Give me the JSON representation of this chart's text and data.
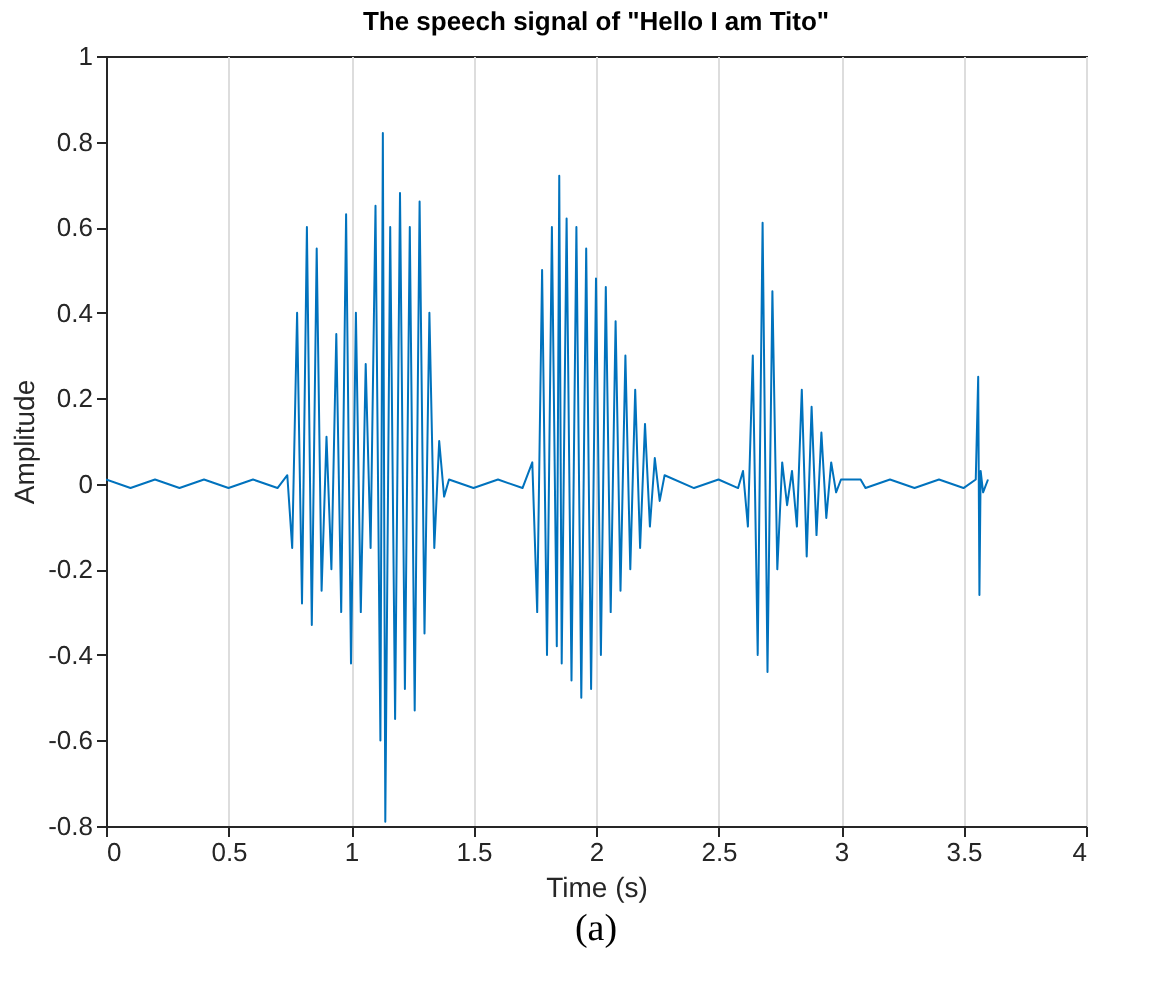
{
  "chart_data": {
    "type": "line",
    "title": "The speech signal of \"Hello I am Tito\"",
    "xlabel": "Time (s)",
    "ylabel": "Amplitude",
    "annotations": [
      "(a)"
    ],
    "xlim": [
      0,
      4
    ],
    "xticks": [
      0,
      0.5,
      1,
      1.5,
      2,
      2.5,
      3,
      3.5,
      4
    ],
    "ylim": [
      -0.8,
      1
    ],
    "yticks": [
      -0.8,
      -0.6,
      -0.4,
      -0.2,
      0,
      0.2,
      0.4,
      0.6,
      0.8,
      1
    ],
    "grid": "x",
    "series": [
      {
        "color": "#0072bd",
        "x": [
          0,
          0.1,
          0.2,
          0.3,
          0.4,
          0.5,
          0.6,
          0.7,
          0.74,
          0.76,
          0.78,
          0.8,
          0.82,
          0.84,
          0.86,
          0.88,
          0.9,
          0.92,
          0.94,
          0.96,
          0.98,
          1.0,
          1.02,
          1.04,
          1.06,
          1.08,
          1.1,
          1.12,
          1.13,
          1.14,
          1.16,
          1.18,
          1.2,
          1.22,
          1.24,
          1.26,
          1.28,
          1.3,
          1.32,
          1.34,
          1.36,
          1.38,
          1.4,
          1.5,
          1.6,
          1.7,
          1.74,
          1.76,
          1.78,
          1.8,
          1.82,
          1.84,
          1.85,
          1.86,
          1.88,
          1.9,
          1.92,
          1.94,
          1.96,
          1.98,
          2.0,
          2.02,
          2.04,
          2.06,
          2.08,
          2.1,
          2.12,
          2.14,
          2.16,
          2.18,
          2.2,
          2.22,
          2.24,
          2.26,
          2.28,
          2.4,
          2.5,
          2.58,
          2.6,
          2.62,
          2.64,
          2.66,
          2.68,
          2.7,
          2.72,
          2.74,
          2.76,
          2.78,
          2.8,
          2.82,
          2.84,
          2.86,
          2.88,
          2.9,
          2.92,
          2.94,
          2.96,
          2.98,
          3.0,
          3.08,
          3.1,
          3.2,
          3.3,
          3.4,
          3.5,
          3.55,
          3.56,
          3.565,
          3.57,
          3.58,
          3.6
        ],
        "values": [
          0.01,
          -0.01,
          0.01,
          -0.01,
          0.01,
          -0.01,
          0.01,
          -0.01,
          0.02,
          -0.15,
          0.4,
          -0.28,
          0.6,
          -0.33,
          0.55,
          -0.25,
          0.11,
          -0.2,
          0.35,
          -0.3,
          0.63,
          -0.42,
          0.4,
          -0.3,
          0.28,
          -0.15,
          0.65,
          -0.6,
          0.82,
          -0.79,
          0.6,
          -0.55,
          0.68,
          -0.48,
          0.6,
          -0.53,
          0.66,
          -0.35,
          0.4,
          -0.15,
          0.1,
          -0.03,
          0.01,
          -0.01,
          0.01,
          -0.01,
          0.05,
          -0.3,
          0.5,
          -0.4,
          0.6,
          -0.38,
          0.72,
          -0.42,
          0.62,
          -0.46,
          0.6,
          -0.5,
          0.55,
          -0.48,
          0.48,
          -0.4,
          0.46,
          -0.3,
          0.38,
          -0.25,
          0.3,
          -0.2,
          0.22,
          -0.15,
          0.14,
          -0.1,
          0.06,
          -0.04,
          0.02,
          -0.01,
          0.01,
          -0.01,
          0.03,
          -0.1,
          0.3,
          -0.4,
          0.61,
          -0.44,
          0.45,
          -0.2,
          0.05,
          -0.05,
          0.03,
          -0.1,
          0.22,
          -0.17,
          0.18,
          -0.12,
          0.12,
          -0.08,
          0.05,
          -0.02,
          0.01,
          0.01,
          -0.01,
          0.01,
          -0.01,
          0.01,
          -0.01,
          0.01,
          0.25,
          -0.26,
          0.03,
          -0.02,
          0.01
        ]
      }
    ]
  }
}
